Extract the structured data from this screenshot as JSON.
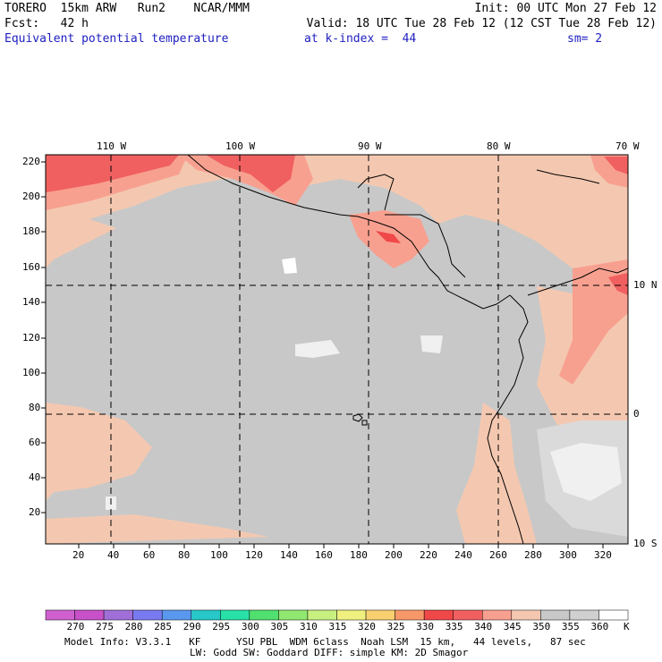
{
  "header": {
    "model": "TORERO  15km ARW   Run2    NCAR/MMM",
    "init": "Init: 00 UTC Mon 27 Feb 12",
    "fcst": "Fcst:   42 h",
    "valid": "Valid: 18 UTC Tue 28 Feb 12 (12 CST Tue 28 Feb 12)",
    "field": "Equivalent potential temperature",
    "kindex": "at k-index =  44",
    "sm": "sm= 2"
  },
  "map": {
    "lon_labels": [
      "110 W",
      "100 W",
      "90 W",
      "80 W",
      "70 W"
    ],
    "lat_labels": [
      "10 N",
      "0",
      "10 S"
    ],
    "y_ticks": [
      "220",
      "200",
      "180",
      "160",
      "140",
      "120",
      "100",
      "80",
      "60",
      "40",
      "20"
    ],
    "x_ticks": [
      "20",
      "40",
      "60",
      "80",
      "100",
      "120",
      "140",
      "160",
      "180",
      "200",
      "220",
      "240",
      "260",
      "280",
      "300",
      "320"
    ]
  },
  "colorbar": {
    "labels": [
      "270",
      "275",
      "280",
      "285",
      "290",
      "295",
      "300",
      "305",
      "310",
      "315",
      "320",
      "325",
      "330",
      "335",
      "340",
      "345",
      "350",
      "355",
      "360"
    ],
    "unit": "K",
    "colors": [
      "#c850c8",
      "#a070d8",
      "#7a7af0",
      "#5a98f0",
      "#28c8c8",
      "#28e0a8",
      "#50e070",
      "#90e870",
      "#c8f080",
      "#f0f080",
      "#f8d070",
      "#f89868",
      "#f04848",
      "#f06060",
      "#f8a090",
      "#f4c8b0",
      "#c8c8c8",
      "#d0d0d0",
      "#ffffff"
    ]
  },
  "footer": {
    "line1": "Model Info: V3.3.1   KF      YSU PBL  WDM 6class  Noah LSM  15 km,   44 levels,   87 sec",
    "line2": "LW: Godd SW: Goddard DIFF: simple KM: 2D Smagor"
  }
}
